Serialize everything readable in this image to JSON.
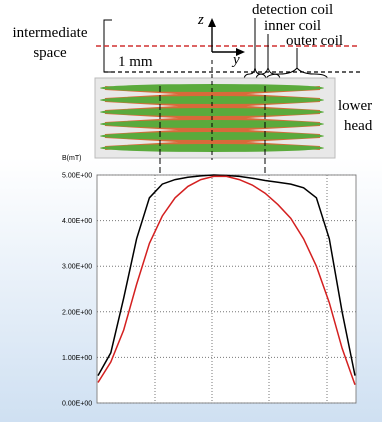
{
  "diagram": {
    "intermediate_space": [
      "intermediate",
      "space"
    ],
    "distance": "1 mm",
    "axis_z": "z",
    "axis_y": "y",
    "detection_coil": "detection coil",
    "inner_coil": "inner coil",
    "outer_coil": "outer coil",
    "lower_head": [
      "lower",
      "head"
    ]
  },
  "chart_data": {
    "type": "line",
    "y_label": "B(mT)",
    "categories": [
      null,
      null,
      null,
      null,
      null,
      null,
      null,
      null,
      null,
      null,
      null,
      null,
      null,
      null,
      null,
      null,
      null,
      null,
      null,
      null,
      null
    ],
    "series": [
      {
        "color": "#000000",
        "values": [
          0.6,
          1.1,
          2.3,
          3.6,
          4.5,
          4.8,
          4.9,
          4.95,
          4.98,
          5.0,
          4.99,
          4.97,
          4.93,
          4.88,
          4.84,
          4.8,
          4.72,
          4.5,
          3.6,
          2.0,
          0.6
        ]
      },
      {
        "color": "#d42020",
        "values": [
          0.45,
          0.9,
          1.6,
          2.6,
          3.5,
          4.1,
          4.5,
          4.75,
          4.9,
          4.97,
          4.97,
          4.9,
          4.78,
          4.6,
          4.35,
          4.05,
          3.6,
          3.0,
          2.2,
          1.2,
          0.4
        ]
      }
    ],
    "ylim": [
      0,
      5
    ],
    "yticks": [
      {
        "value": 0,
        "label": "0.00E+00"
      },
      {
        "value": 1,
        "label": "1.00E+00"
      },
      {
        "value": 2,
        "label": "2.00E+00"
      },
      {
        "value": 3,
        "label": "3.00E+00"
      },
      {
        "value": 4,
        "label": "4.00E+00"
      },
      {
        "value": 5,
        "label": "5.00E+00"
      }
    ],
    "grid": true
  }
}
